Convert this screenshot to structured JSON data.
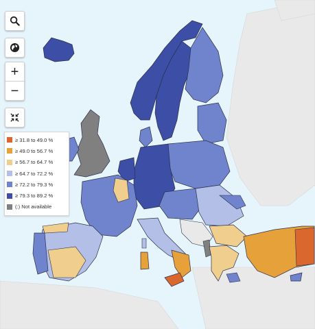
{
  "controls": {
    "search_icon": "search-icon",
    "globe_icon": "globe-icon",
    "zoom_in_label": "+",
    "zoom_out_label": "−",
    "fullscreen_icon": "collapse-icon"
  },
  "legend": {
    "items": [
      {
        "label": "≥ 31.8 to 49.0 %",
        "color": "#d9672e"
      },
      {
        "label": "≥ 49.0 to 56.7 %",
        "color": "#e6a13a"
      },
      {
        "label": "≥ 56.7 to 64.7 %",
        "color": "#f0cf8e"
      },
      {
        "label": "≥ 64.7 to 72.2 %",
        "color": "#b3bfe6"
      },
      {
        "label": "≥ 72.2 to 79.3 %",
        "color": "#6f84cc"
      },
      {
        "label": "≥ 79.3 to 89.2 %",
        "color": "#3c4ea6"
      },
      {
        "label": "(:) Not available",
        "color": "#808080"
      }
    ]
  },
  "colors": {
    "sea": "#e6f4fb",
    "non_eu_land": "#e9e9e9",
    "border": "#2a2f4a"
  }
}
